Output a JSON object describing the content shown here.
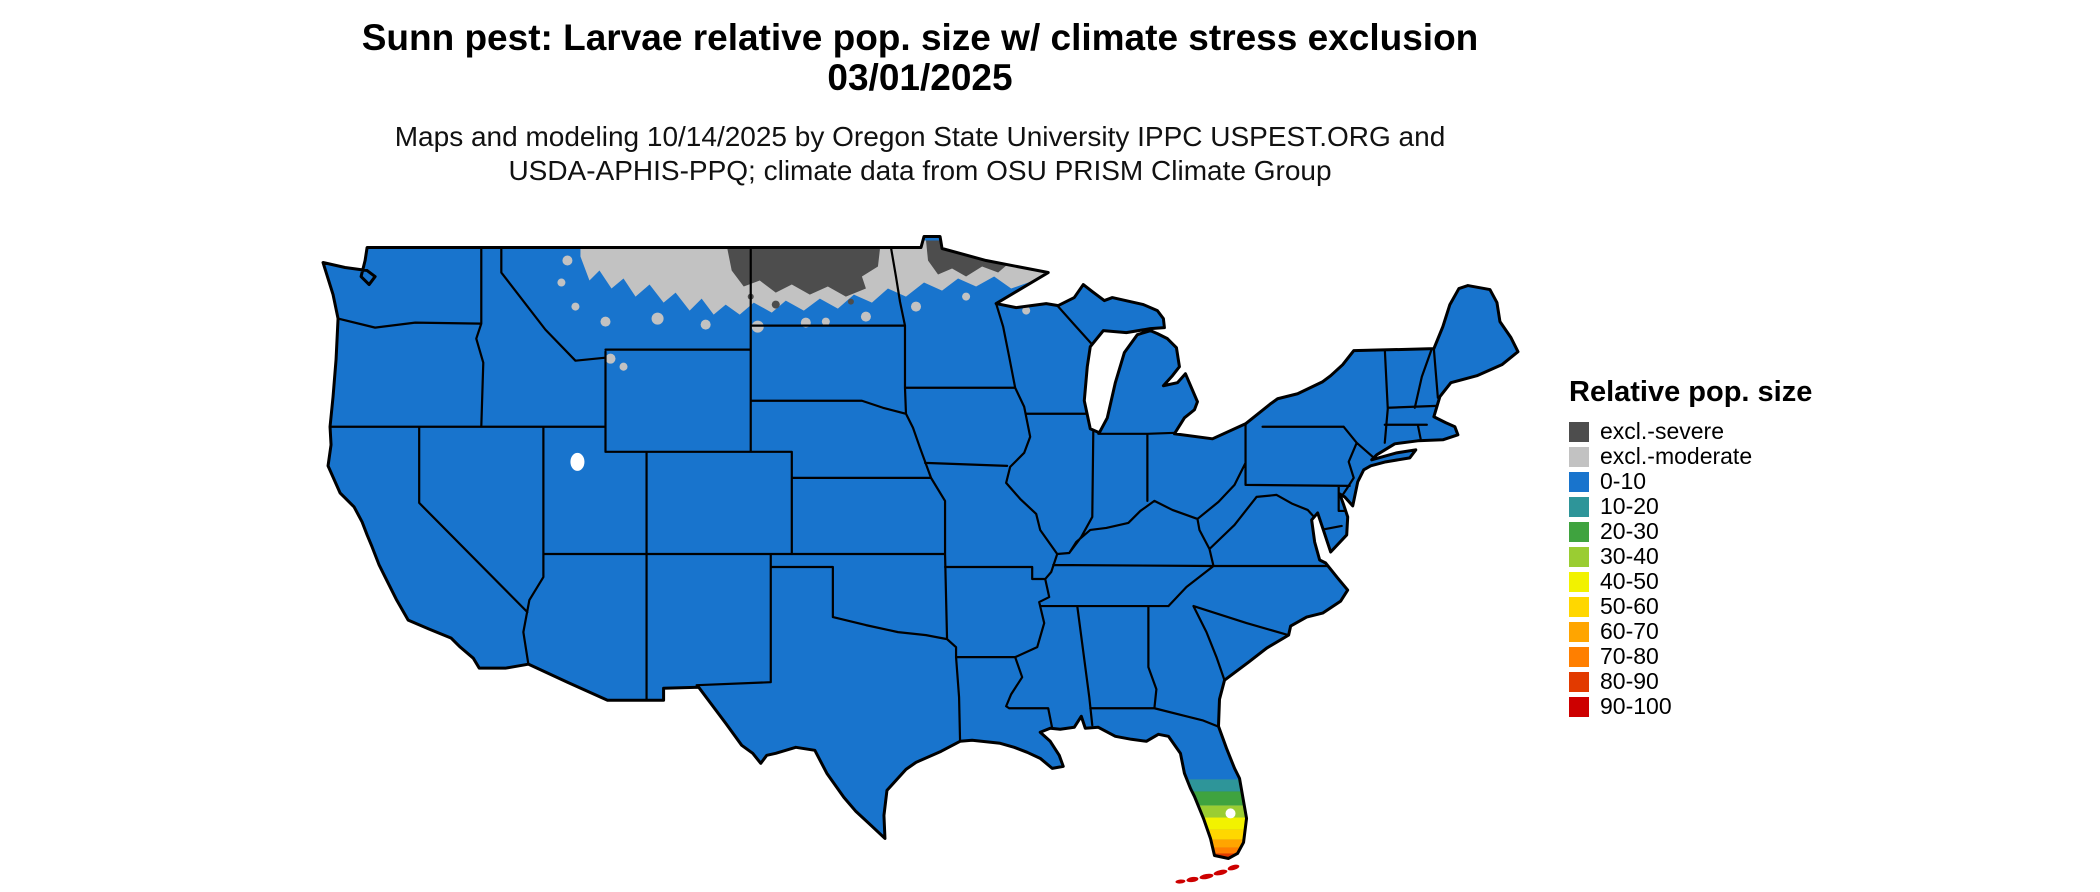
{
  "header": {
    "title_line1": "Sunn pest: Larvae relative pop. size w/ climate stress exclusion",
    "title_line2": "03/01/2025",
    "subtitle_line1": "Maps and modeling 10/14/2025 by Oregon State University IPPC USPEST.ORG and",
    "subtitle_line2": "USDA-APHIS-PPQ; climate data from OSU PRISM Climate Group"
  },
  "legend": {
    "title": "Relative pop. size",
    "items": [
      {
        "label": "excl.-severe",
        "color": "#4d4d4d"
      },
      {
        "label": "excl.-moderate",
        "color": "#c2c2c2"
      },
      {
        "label": "0-10",
        "color": "#1874cd"
      },
      {
        "label": "10-20",
        "color": "#2e9599"
      },
      {
        "label": "20-30",
        "color": "#3fa33f"
      },
      {
        "label": "30-40",
        "color": "#9acd32"
      },
      {
        "label": "40-50",
        "color": "#f2f200"
      },
      {
        "label": "50-60",
        "color": "#ffd700"
      },
      {
        "label": "60-70",
        "color": "#ffa500"
      },
      {
        "label": "70-80",
        "color": "#ff7f00"
      },
      {
        "label": "80-90",
        "color": "#e23a00"
      },
      {
        "label": "90-100",
        "color": "#cd0000"
      }
    ]
  },
  "map": {
    "border_color": "#000000",
    "water_color": "#ffffff",
    "base_category": "0-10",
    "regions": [
      {
        "name": "conterminous-us-base",
        "category": "0-10"
      },
      {
        "name": "northern-border-band",
        "category": "excl.-moderate",
        "location": "Montana, North Dakota, northern Minnesota"
      },
      {
        "name": "west-north-dakota-northeast-montana",
        "category": "excl.-severe"
      },
      {
        "name": "northern-minnesota",
        "category": "excl.-severe"
      },
      {
        "name": "south-florida-gradient",
        "categories": [
          "10-20",
          "20-30",
          "30-40",
          "40-50",
          "50-60",
          "60-70",
          "70-80",
          "80-90",
          "90-100"
        ]
      },
      {
        "name": "florida-keys",
        "category": "90-100"
      }
    ]
  },
  "chart_data": {
    "type": "choropleth-map",
    "title": "Sunn pest: Larvae relative pop. size w/ climate stress exclusion",
    "date": "03/01/2025",
    "legend_title": "Relative pop. size",
    "categories": [
      "excl.-severe",
      "excl.-moderate",
      "0-10",
      "10-20",
      "20-30",
      "30-40",
      "40-50",
      "50-60",
      "60-70",
      "70-80",
      "80-90",
      "90-100"
    ],
    "observations": [
      "Nearly all of the conterminous United States is mapped in the 0-10 relative population class (blue)",
      "An excl.-moderate (light gray) band runs along the Canadian border across Montana, North Dakota and northern Minnesota",
      "excl.-severe (dark gray) cores cover northeastern Montana / western North Dakota and north-central Minnesota",
      "Southern Florida shows a gradient from 10-20 up to 90-100, with the Everglades tip and Florida Keys in the 80-100 classes"
    ]
  }
}
